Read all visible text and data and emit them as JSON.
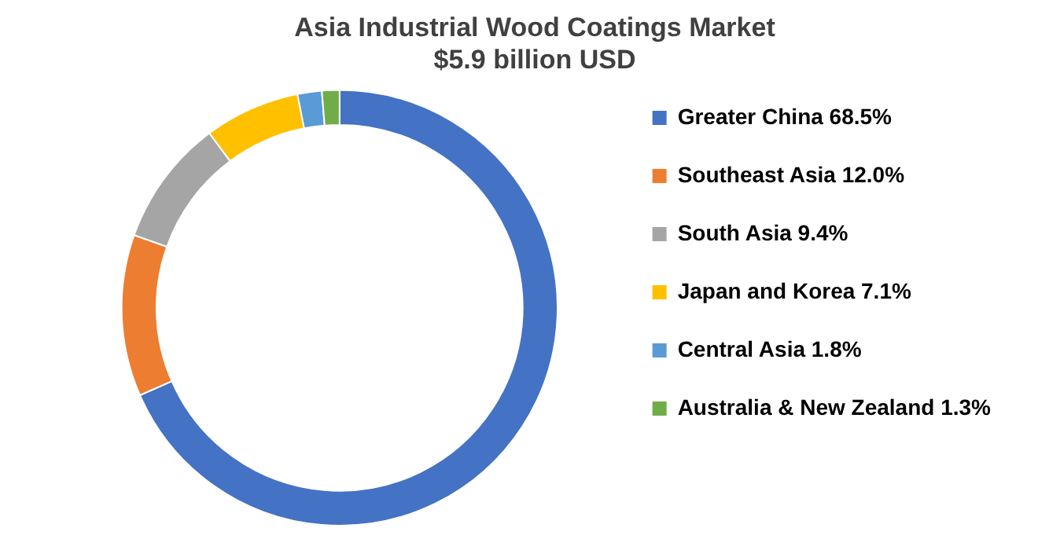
{
  "chart_data": {
    "type": "donut",
    "title": "Asia Industrial Wood Coatings Market",
    "subtitle": "$5.9 billion USD",
    "categories": [
      "Greater China",
      "Southeast Asia",
      "South Asia",
      "Japan and Korea",
      "Central Asia",
      "Australia & New Zealand"
    ],
    "values": [
      68.5,
      12.0,
      9.4,
      7.1,
      1.8,
      1.3
    ],
    "value_labels": [
      "68.5%",
      "12.0%",
      "9.4%",
      "7.1%",
      "1.8%",
      "1.3%"
    ],
    "colors": [
      "#4472c4",
      "#ed7d31",
      "#a5a5a5",
      "#ffc000",
      "#5b9bd5",
      "#70ad47"
    ],
    "legend": "right"
  }
}
